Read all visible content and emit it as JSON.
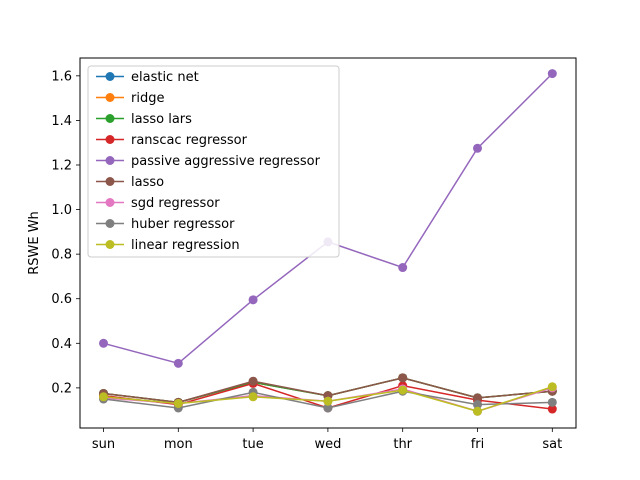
{
  "chart_data": {
    "type": "line",
    "title": "",
    "xlabel": "",
    "ylabel": "RSWE Wh",
    "categories": [
      "sun",
      "mon",
      "tue",
      "wed",
      "thr",
      "fri",
      "sat"
    ],
    "ylim": [
      0.02,
      1.68
    ],
    "yticks": [
      "0.2",
      "0.4",
      "0.6",
      "0.8",
      "1.0",
      "1.2",
      "1.4",
      "1.6"
    ],
    "legend_position": "top-left",
    "series": [
      {
        "name": "elastic net",
        "color": "#1f77b4",
        "values": [
          0.175,
          0.135,
          0.225,
          0.165,
          0.245,
          0.155,
          0.185
        ]
      },
      {
        "name": "ridge",
        "color": "#ff7f0e",
        "values": [
          0.175,
          0.135,
          0.225,
          0.165,
          0.245,
          0.155,
          0.185
        ]
      },
      {
        "name": "lasso lars",
        "color": "#2ca02c",
        "values": [
          0.175,
          0.135,
          0.225,
          0.165,
          0.245,
          0.155,
          0.185
        ]
      },
      {
        "name": "ranscac regressor",
        "color": "#d62728",
        "values": [
          0.165,
          0.125,
          0.22,
          0.11,
          0.21,
          0.145,
          0.105
        ]
      },
      {
        "name": "passive aggressive regressor",
        "color": "#9467bd",
        "values": [
          0.4,
          0.31,
          0.595,
          0.855,
          0.74,
          1.275,
          1.61
        ]
      },
      {
        "name": "lasso",
        "color": "#8c564b",
        "values": [
          0.175,
          0.135,
          0.23,
          0.165,
          0.245,
          0.155,
          0.185
        ]
      },
      {
        "name": "sgd regressor",
        "color": "#e377c2",
        "values": [
          0.155,
          0.13,
          0.165,
          0.14,
          0.195,
          0.095,
          0.2
        ]
      },
      {
        "name": "huber regressor",
        "color": "#7f7f7f",
        "values": [
          0.15,
          0.11,
          0.18,
          0.11,
          0.185,
          0.125,
          0.135
        ]
      },
      {
        "name": "linear regression",
        "color": "#bcbd22",
        "values": [
          0.16,
          0.13,
          0.16,
          0.14,
          0.19,
          0.095,
          0.205
        ]
      }
    ]
  }
}
